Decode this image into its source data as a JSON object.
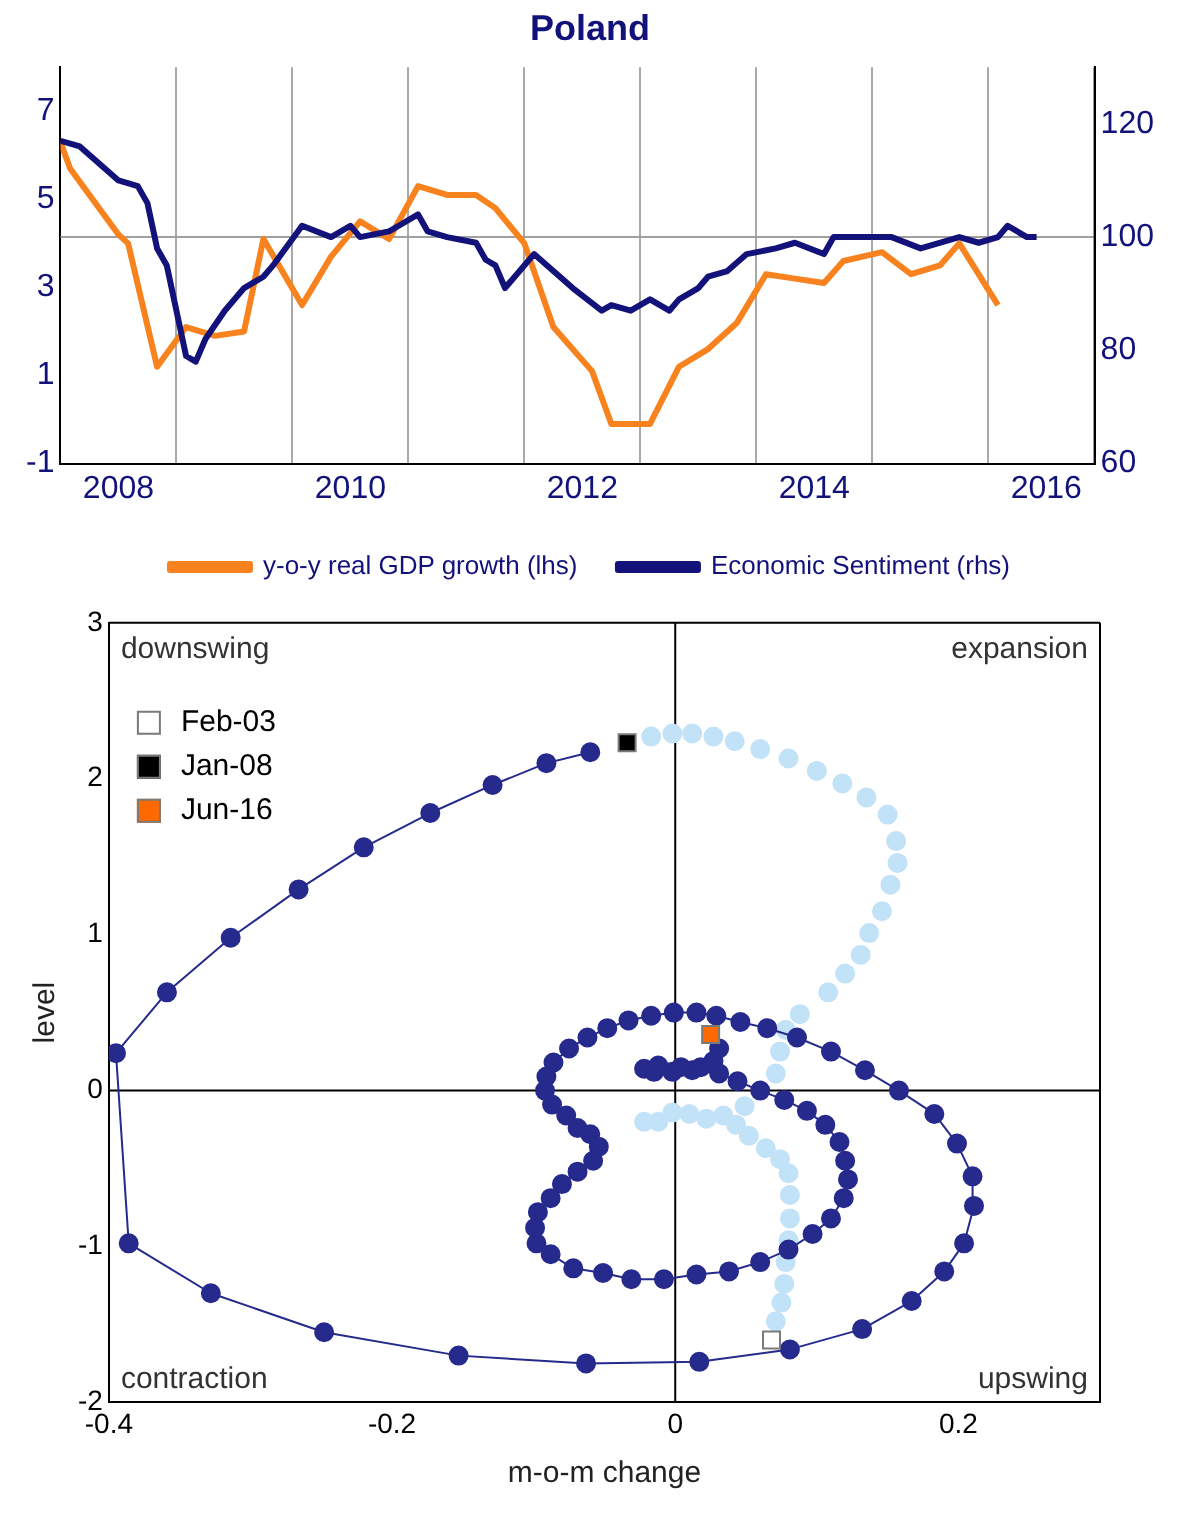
{
  "chart_data": [
    {
      "type": "line",
      "title": "Poland",
      "xlim": [
        "2008-01",
        "2016-12"
      ],
      "xticks": [
        {
          "value": "2008-07",
          "label": "2008"
        },
        {
          "value": "2009-01",
          "label": null
        },
        {
          "value": "2010-01",
          "label": null
        },
        {
          "value": "2010-07",
          "label": "2010"
        },
        {
          "value": "2011-01",
          "label": null
        },
        {
          "value": "2012-01",
          "label": null
        },
        {
          "value": "2012-07",
          "label": "2012"
        },
        {
          "value": "2013-01",
          "label": null
        },
        {
          "value": "2014-01",
          "label": null
        },
        {
          "value": "2014-07",
          "label": "2014"
        },
        {
          "value": "2015-01",
          "label": null
        },
        {
          "value": "2016-01",
          "label": null
        },
        {
          "value": "2016-07",
          "label": "2016"
        }
      ],
      "ylim": [
        -1,
        8
      ],
      "yticks": [
        -1,
        1,
        3,
        5,
        7
      ],
      "y2lim": [
        60,
        130
      ],
      "y2ticks": [
        60,
        80,
        100,
        120
      ],
      "grid": "x",
      "legend": "bottom",
      "ref_lines": [
        {
          "axis": "y2",
          "value": 100,
          "color": "#a0a0a0"
        }
      ],
      "series": [
        {
          "name": "y-o-y real GDP growth (lhs)",
          "color": "#f7821e",
          "x": [
            "2008-01",
            "2008-02",
            "2008-04",
            "2008-07",
            "2008-08",
            "2008-11",
            "2009-02",
            "2009-05",
            "2009-08",
            "2009-10",
            "2010-02",
            "2010-05",
            "2010-08",
            "2010-11",
            "2011-02",
            "2011-05",
            "2011-08",
            "2011-10",
            "2012-01",
            "2012-04",
            "2012-08",
            "2012-10",
            "2013-02",
            "2013-05",
            "2013-08",
            "2013-11",
            "2014-02",
            "2014-05",
            "2014-08",
            "2014-10",
            "2015-02",
            "2015-05",
            "2015-08",
            "2015-10",
            "2016-02"
          ],
          "values": [
            6.3,
            5.7,
            5.1,
            4.2,
            4.0,
            1.2,
            2.1,
            1.9,
            2.0,
            4.1,
            2.6,
            3.7,
            4.5,
            4.1,
            5.3,
            5.1,
            5.1,
            4.8,
            4.0,
            2.1,
            1.1,
            -0.1,
            -0.1,
            1.2,
            1.6,
            2.2,
            3.3,
            3.2,
            3.1,
            3.6,
            3.8,
            3.3,
            3.5,
            4.0,
            2.6
          ]
        },
        {
          "name": "Economic Sentiment (rhs)",
          "color": "#12127a",
          "axis": "y2",
          "x": [
            "2008-01",
            "2008-03",
            "2008-05",
            "2008-07",
            "2008-09",
            "2008-10",
            "2008-11",
            "2008-12",
            "2009-02",
            "2009-03",
            "2009-04",
            "2009-06",
            "2009-08",
            "2009-10",
            "2009-11",
            "2010-02",
            "2010-05",
            "2010-07",
            "2010-08",
            "2010-11",
            "2010-12",
            "2011-02",
            "2011-03",
            "2011-05",
            "2011-08",
            "2011-09",
            "2011-10",
            "2011-11",
            "2012-02",
            "2012-04",
            "2012-06",
            "2012-09",
            "2012-10",
            "2012-12",
            "2013-02",
            "2013-04",
            "2013-05",
            "2013-07",
            "2013-08",
            "2013-10",
            "2013-12",
            "2014-03",
            "2014-05",
            "2014-08",
            "2014-09",
            "2014-11",
            "2015-03",
            "2015-06",
            "2015-10",
            "2015-12",
            "2016-02",
            "2016-03",
            "2016-05",
            "2016-06"
          ],
          "values": [
            117,
            116,
            113,
            110,
            109,
            106,
            98,
            95,
            79,
            78,
            82,
            87,
            91,
            93,
            95,
            102,
            100,
            102,
            100,
            101,
            102,
            104,
            101,
            100,
            99,
            96,
            95,
            91,
            97,
            94,
            91,
            87,
            88,
            87,
            89,
            87,
            89,
            91,
            93,
            94,
            97,
            98,
            99,
            97,
            100,
            100,
            100,
            98,
            100,
            99,
            100,
            102,
            100,
            100
          ]
        }
      ]
    },
    {
      "type": "scatter",
      "xlabel": "m-o-m change",
      "ylabel": "level",
      "xlim": [
        -0.4,
        0.3
      ],
      "xticks": [
        -0.4,
        -0.2,
        0,
        0.2
      ],
      "ylim": [
        -2,
        3
      ],
      "yticks": [
        -2,
        -1,
        0,
        1,
        2,
        3
      ],
      "legend": "top left",
      "annotations": [
        "downswing",
        "expansion",
        "contraction",
        "upswing"
      ],
      "ref_lines": [
        {
          "axis": "x",
          "value": 0,
          "color": "#000000"
        },
        {
          "axis": "y",
          "value": 0,
          "color": "#000000"
        }
      ],
      "series": [
        {
          "type": "scatter",
          "marker": "circle",
          "color": "#c2e2f7",
          "x": [
            0.071,
            0.075,
            0.077,
            0.078,
            0.08,
            0.081,
            0.081,
            0.08,
            0.074,
            0.064,
            0.052,
            0.043,
            0.034,
            0.022,
            0.01,
            -0.002,
            -0.012,
            -0.022,
            0.049,
            0.06,
            0.071,
            0.074,
            0.078,
            0.088,
            0.108,
            0.12,
            0.131,
            0.137,
            0.146,
            0.152,
            0.157,
            0.156,
            0.15,
            0.135,
            0.118,
            0.1,
            0.08,
            0.06,
            0.042,
            0.027,
            0.012,
            -0.002,
            -0.017
          ],
          "values": [
            -1.48,
            -1.36,
            -1.24,
            -1.1,
            -0.96,
            -0.82,
            -0.67,
            -0.53,
            -0.44,
            -0.37,
            -0.29,
            -0.22,
            -0.16,
            -0.18,
            -0.15,
            -0.14,
            -0.2,
            -0.2,
            -0.1,
            null,
            0.11,
            0.25,
            0.39,
            0.49,
            0.63,
            0.75,
            0.87,
            1.01,
            1.15,
            1.32,
            1.46,
            1.6,
            1.77,
            1.88,
            1.97,
            2.05,
            2.13,
            2.19,
            2.24,
            2.27,
            2.29,
            2.29,
            2.27
          ]
        },
        {
          "type": "line",
          "marker": "circle",
          "color": "#262a8c",
          "x": [
            -0.06,
            -0.091,
            -0.129,
            -0.173,
            -0.22,
            -0.266,
            -0.314,
            -0.359,
            -0.395,
            -0.386,
            -0.328,
            -0.248,
            -0.153,
            -0.063,
            0.017,
            0.081,
            0.132,
            0.167,
            0.19,
            0.204,
            0.211,
            0.21,
            0.199,
            0.183,
            0.158,
            0.134,
            0.11,
            0.086,
            0.065,
            0.046,
            0.029,
            0.015,
            -0.001,
            -0.017,
            -0.033,
            -0.048,
            -0.062,
            -0.075,
            -0.086,
            -0.091,
            -0.092,
            -0.087,
            -0.077,
            -0.069,
            -0.06,
            -0.054,
            -0.058,
            -0.069,
            -0.08,
            -0.088,
            -0.097,
            -0.099,
            -0.098,
            -0.088,
            -0.072,
            -0.051,
            -0.031,
            -0.008,
            0.015,
            0.038,
            0.06,
            0.08,
            0.097,
            0.11,
            0.119,
            0.122,
            0.12,
            0.116,
            0.106,
            0.093,
            0.077,
            0.06,
            0.044,
            0.031,
            0.012,
            -0.002,
            -0.015,
            -0.022,
            -0.012,
            0.004,
            0.018,
            0.027,
            0.031
          ],
          "values": [
            2.17,
            2.1,
            1.96,
            1.78,
            1.56,
            1.29,
            0.98,
            0.63,
            0.24,
            -0.98,
            -1.3,
            -1.55,
            -1.7,
            -1.75,
            -1.74,
            -1.66,
            -1.53,
            -1.35,
            -1.16,
            -0.98,
            -0.74,
            -0.55,
            -0.34,
            -0.15,
            0.0,
            0.13,
            0.25,
            0.34,
            0.4,
            0.44,
            0.48,
            0.5,
            0.5,
            0.48,
            0.45,
            0.4,
            0.34,
            0.27,
            0.18,
            0.09,
            0.0,
            -0.09,
            -0.16,
            -0.24,
            -0.28,
            -0.36,
            -0.45,
            -0.52,
            -0.6,
            -0.69,
            -0.78,
            -0.88,
            -0.98,
            -1.05,
            -1.14,
            -1.17,
            -1.21,
            -1.21,
            -1.18,
            -1.16,
            -1.1,
            -1.02,
            -0.92,
            -0.82,
            -0.69,
            -0.57,
            -0.45,
            -0.33,
            -0.22,
            -0.13,
            -0.06,
            0.0,
            0.06,
            0.11,
            0.13,
            0.12,
            0.12,
            0.14,
            0.16,
            0.15,
            0.15,
            0.19,
            0.27
          ]
        },
        {
          "type": "scatter",
          "marker": "square",
          "name": "Feb-03",
          "color": "#ffffff",
          "x": [
            0.068
          ],
          "values": [
            -1.6
          ]
        },
        {
          "type": "scatter",
          "marker": "square",
          "name": "Jan-08",
          "color": "#000000",
          "x": [
            -0.034
          ],
          "values": [
            2.23
          ]
        },
        {
          "type": "scatter",
          "marker": "square",
          "name": "Jun-16",
          "color": "#ff6a00",
          "x": [
            0.025
          ],
          "values": [
            0.36
          ]
        }
      ]
    }
  ]
}
